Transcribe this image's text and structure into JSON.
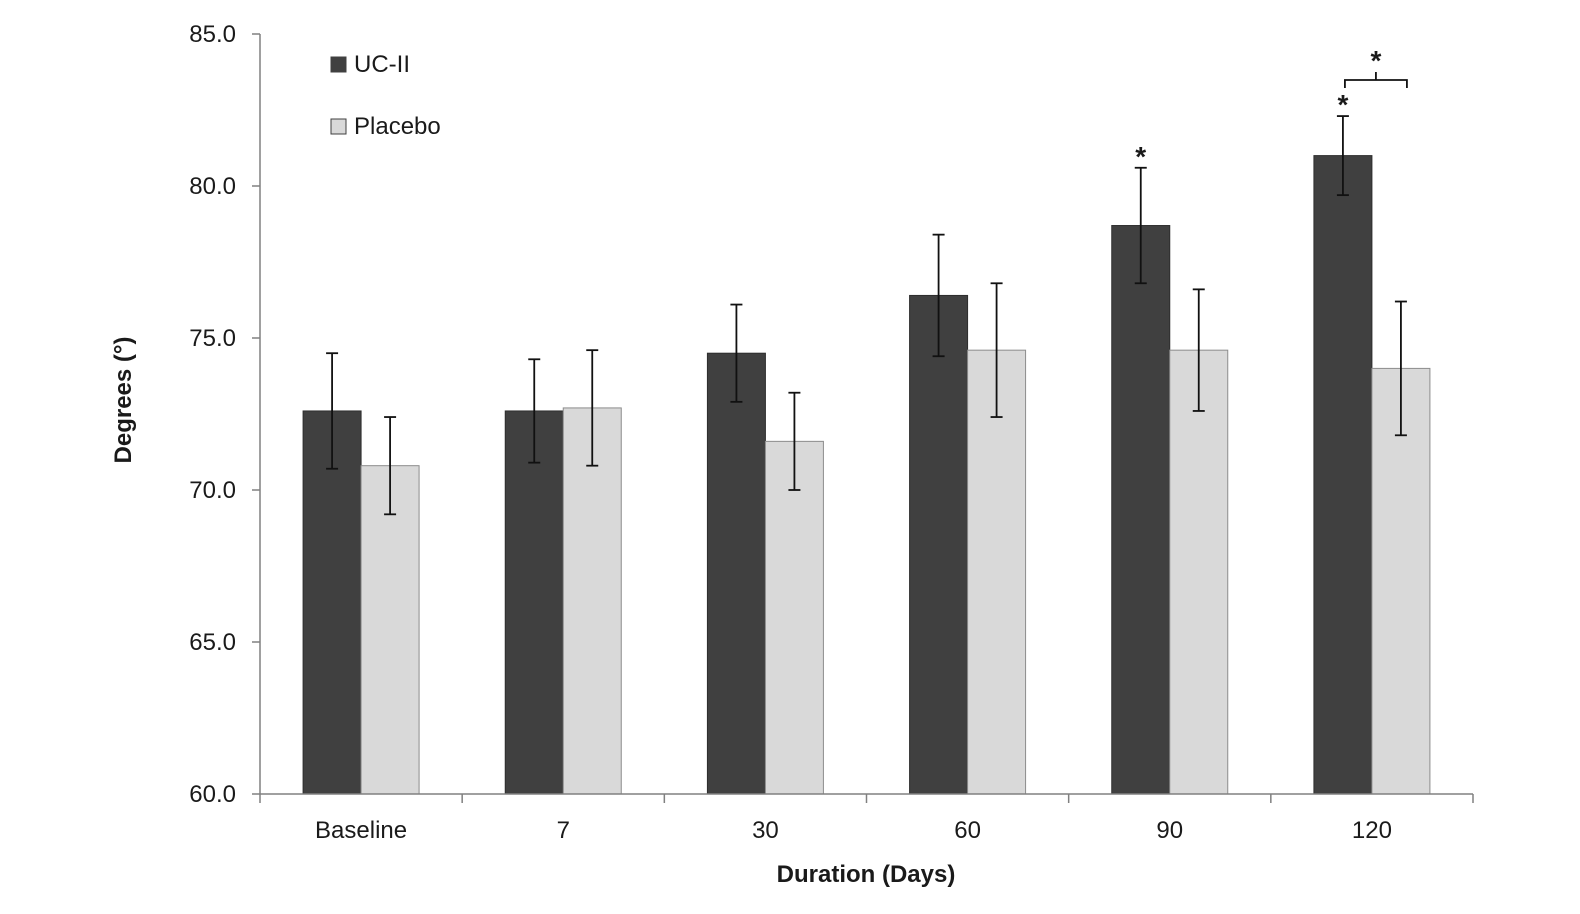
{
  "chart_data": {
    "type": "bar",
    "title": "",
    "xlabel": "Duration (Days)",
    "ylabel": "Degrees (°)",
    "categories": [
      "Baseline",
      "7",
      "30",
      "60",
      "90",
      "120"
    ],
    "ylim": [
      60.0,
      85.0
    ],
    "yticks": [
      "60.0",
      "65.0",
      "70.0",
      "75.0",
      "80.0",
      "85.0"
    ],
    "ytick_values": [
      60,
      65,
      70,
      75,
      80,
      85
    ],
    "grid": false,
    "legend_position": "top-left",
    "series": [
      {
        "name": "UC-II",
        "color": "#404040",
        "values": [
          72.6,
          72.6,
          74.5,
          76.4,
          78.7,
          81.0
        ],
        "errors": [
          1.9,
          1.7,
          1.6,
          2.0,
          1.9,
          1.3
        ]
      },
      {
        "name": "Placebo",
        "color": "#d9d9d9",
        "values": [
          70.8,
          72.7,
          71.6,
          74.6,
          74.6,
          74.0
        ],
        "errors": [
          1.6,
          1.9,
          1.6,
          2.2,
          2.0,
          2.2
        ]
      }
    ],
    "annotations": [
      {
        "text": "*",
        "category": "90",
        "series": "UC-II"
      },
      {
        "text": "*",
        "category": "120",
        "series": "UC-II"
      },
      {
        "text": "*",
        "category": "120",
        "between_series": [
          "UC-II",
          "Placebo"
        ]
      }
    ]
  }
}
